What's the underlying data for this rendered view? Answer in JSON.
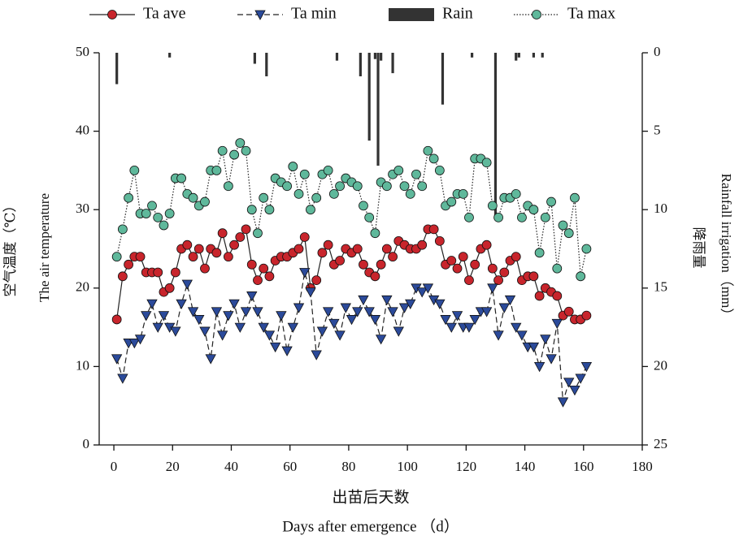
{
  "chart_data": {
    "type": "line",
    "xlabel": [
      "出苗后天数",
      "Days after emergence （d）"
    ],
    "ylabel": [
      "空气温度（℃）",
      "The air temperature"
    ],
    "y2label": [
      "降雨量",
      "Rainfall irrigation（mm）"
    ],
    "xlim": [
      -5,
      180
    ],
    "xticks": [
      0,
      20,
      40,
      60,
      80,
      100,
      120,
      140,
      160,
      180
    ],
    "ylim": [
      0,
      50
    ],
    "yticks": [
      0,
      10,
      20,
      30,
      40,
      50
    ],
    "y2lim": [
      25,
      0
    ],
    "y2ticks": [
      0,
      5,
      10,
      15,
      20,
      25
    ],
    "series": [
      {
        "name": "Ta  ave",
        "color": "#c8252c",
        "marker": "circle",
        "dash": "solid",
        "x": [
          1,
          3,
          5,
          7,
          9,
          11,
          13,
          15,
          17,
          19,
          21,
          23,
          25,
          27,
          29,
          31,
          33,
          35,
          37,
          39,
          41,
          43,
          45,
          47,
          49,
          51,
          53,
          55,
          57,
          59,
          61,
          63,
          65,
          67,
          69,
          71,
          73,
          75,
          77,
          79,
          81,
          83,
          85,
          87,
          89,
          91,
          93,
          95,
          97,
          99,
          101,
          103,
          105,
          107,
          109,
          111,
          113,
          115,
          117,
          119,
          121,
          123,
          125,
          127,
          129,
          131,
          133,
          135,
          137,
          139,
          141,
          143,
          145,
          147,
          149,
          151,
          153,
          155,
          157,
          159,
          161
        ],
        "values": [
          16,
          21.5,
          23,
          24,
          24,
          22,
          22,
          22,
          19.5,
          20,
          22,
          25,
          25.5,
          24,
          25,
          22.5,
          25,
          24.5,
          27,
          24,
          25.5,
          26.5,
          27.5,
          23,
          21,
          22.5,
          21.5,
          23.5,
          24,
          24,
          24.5,
          25,
          26.5,
          20,
          21,
          24.5,
          25.5,
          23,
          23.5,
          25,
          24.5,
          25,
          23,
          22,
          21.5,
          23,
          25,
          24,
          26,
          25.5,
          25,
          25,
          25.5,
          27.5,
          27.5,
          26,
          23,
          23.5,
          22.5,
          24,
          21,
          23,
          25,
          25.5,
          22.5,
          21,
          22,
          23.5,
          24,
          21,
          21.5,
          21.5,
          19,
          20,
          19.5,
          19,
          16.5,
          17,
          16,
          16,
          16.5
        ]
      },
      {
        "name": "Ta min",
        "color": "#2b4a9a",
        "marker": "triangle",
        "dash": "dashed",
        "x": [
          1,
          3,
          5,
          7,
          9,
          11,
          13,
          15,
          17,
          19,
          21,
          23,
          25,
          27,
          29,
          31,
          33,
          35,
          37,
          39,
          41,
          43,
          45,
          47,
          49,
          51,
          53,
          55,
          57,
          59,
          61,
          63,
          65,
          67,
          69,
          71,
          73,
          75,
          77,
          79,
          81,
          83,
          85,
          87,
          89,
          91,
          93,
          95,
          97,
          99,
          101,
          103,
          105,
          107,
          109,
          111,
          113,
          115,
          117,
          119,
          121,
          123,
          125,
          127,
          129,
          131,
          133,
          135,
          137,
          139,
          141,
          143,
          145,
          147,
          149,
          151,
          153,
          155,
          157,
          159,
          161
        ],
        "values": [
          11,
          8.5,
          13,
          13,
          13.5,
          16.5,
          18,
          15,
          16.5,
          15,
          14.5,
          18,
          20.5,
          17,
          16,
          14.5,
          11,
          17,
          14,
          16.5,
          18,
          15,
          17,
          19,
          17,
          15,
          14,
          12.5,
          16.5,
          12,
          15,
          17.5,
          22,
          19.5,
          11.5,
          14.5,
          17,
          15.5,
          14,
          17.5,
          16,
          17,
          18.5,
          17,
          16,
          13.5,
          18.5,
          17,
          14.5,
          17.5,
          18,
          20,
          19.5,
          20,
          18.5,
          18,
          16,
          15,
          16.5,
          15,
          15,
          16,
          17,
          17,
          20,
          14,
          17.5,
          18.5,
          15,
          14,
          12.5,
          12.5,
          10,
          13.5,
          11,
          15.5,
          5.5,
          8,
          7,
          8.5,
          10
        ]
      },
      {
        "name": "Rain",
        "color": "#333333",
        "marker": "bar",
        "axis": "y2",
        "x": [
          1,
          19,
          48,
          52,
          76,
          84,
          87,
          89,
          90,
          91,
          95,
          112,
          122,
          130,
          137,
          138,
          143,
          146
        ],
        "values": [
          2,
          0.3,
          0.7,
          1.5,
          0.5,
          1.5,
          5.6,
          0.4,
          7.2,
          0.5,
          1.3,
          3.3,
          0.3,
          10.5,
          0.5,
          0.3,
          0.3,
          0.3
        ]
      },
      {
        "name": "Ta max",
        "color": "#5fb89b",
        "marker": "circle",
        "dash": "dotted",
        "x": [
          1,
          3,
          5,
          7,
          9,
          11,
          13,
          15,
          17,
          19,
          21,
          23,
          25,
          27,
          29,
          31,
          33,
          35,
          37,
          39,
          41,
          43,
          45,
          47,
          49,
          51,
          53,
          55,
          57,
          59,
          61,
          63,
          65,
          67,
          69,
          71,
          73,
          75,
          77,
          79,
          81,
          83,
          85,
          87,
          89,
          91,
          93,
          95,
          97,
          99,
          101,
          103,
          105,
          107,
          109,
          111,
          113,
          115,
          117,
          119,
          121,
          123,
          125,
          127,
          129,
          131,
          133,
          135,
          137,
          139,
          141,
          143,
          145,
          147,
          149,
          151,
          153,
          155,
          157,
          159,
          161
        ],
        "values": [
          24,
          27.5,
          31.5,
          35,
          29.5,
          29.5,
          30.5,
          29,
          28,
          29.5,
          34,
          34,
          32,
          31.5,
          30.5,
          31,
          35,
          35,
          37.5,
          33,
          37,
          38.5,
          37.5,
          30,
          27,
          31.5,
          30,
          34,
          33.5,
          33,
          35.5,
          32,
          34.5,
          30,
          31.5,
          34.5,
          35,
          32,
          33,
          34,
          33.5,
          33,
          30.5,
          29,
          27,
          33.5,
          33,
          34.5,
          35,
          33,
          32,
          34.5,
          33,
          37.5,
          36.5,
          35,
          30.5,
          31,
          32,
          32,
          29,
          36.5,
          36.5,
          36,
          30.5,
          29,
          31.5,
          31.5,
          32,
          29,
          30.5,
          30,
          24.5,
          29,
          31,
          22.5,
          28,
          27,
          31.5,
          21.5,
          25
        ]
      }
    ]
  }
}
